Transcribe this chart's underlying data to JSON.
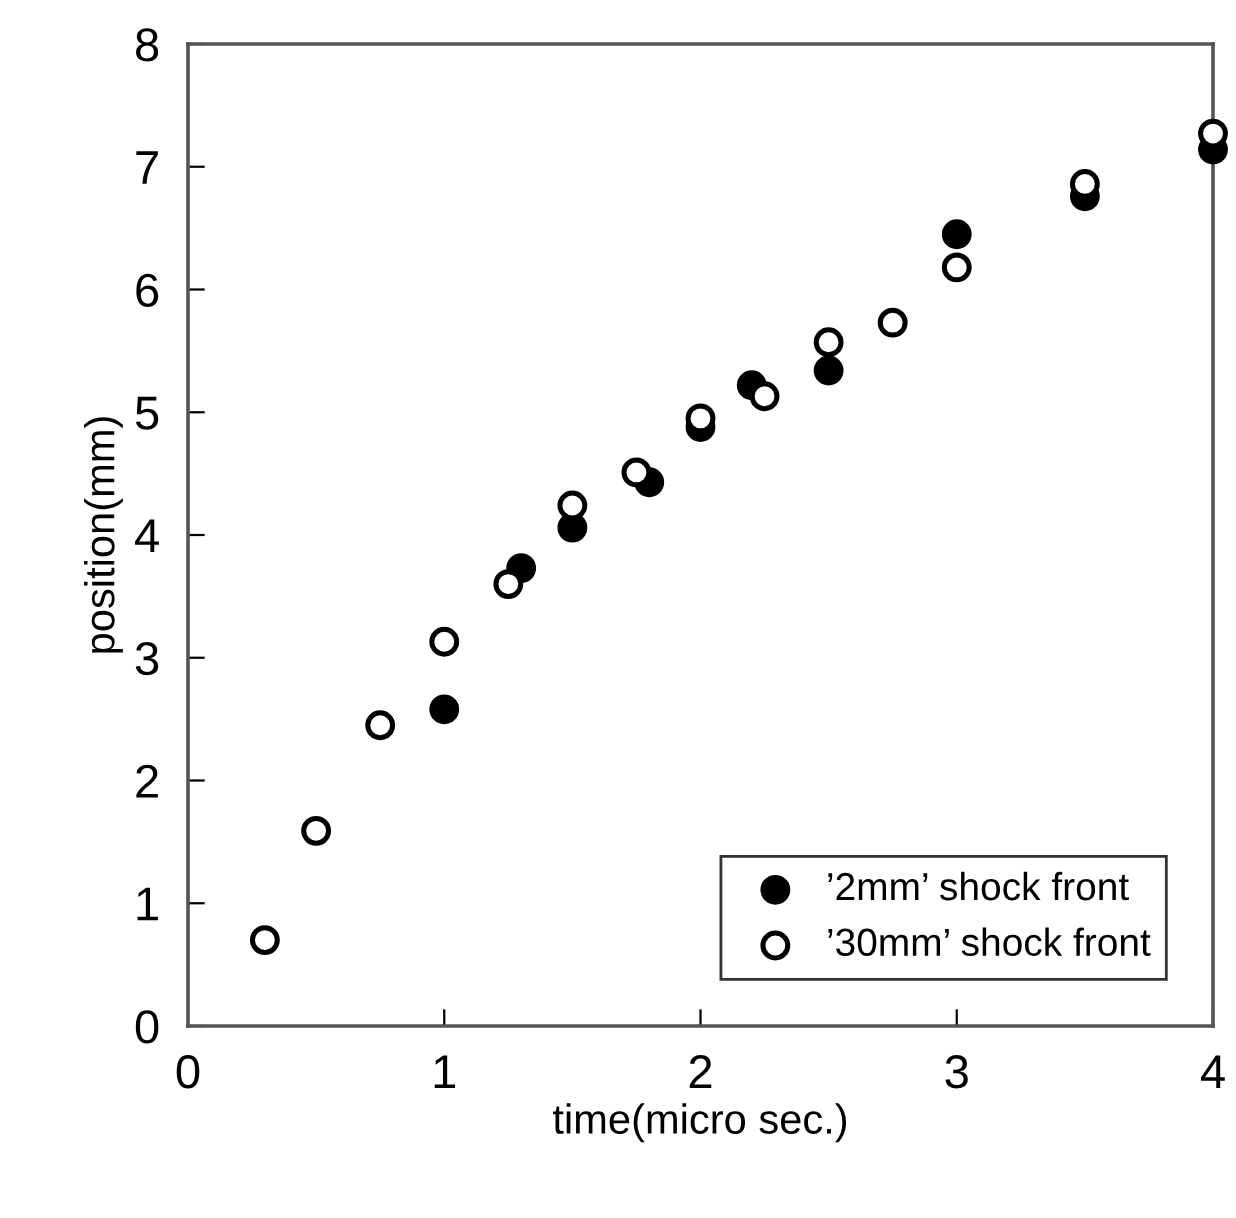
{
  "chart_data": {
    "type": "scatter",
    "xlabel": "time(micro sec.)",
    "ylabel": "position(mm)",
    "xlim": [
      0,
      4
    ],
    "ylim": [
      0,
      8
    ],
    "xticks": [
      0,
      1,
      2,
      3,
      4
    ],
    "yticks": [
      0,
      1,
      2,
      3,
      4,
      5,
      6,
      7,
      8
    ],
    "grid": false,
    "legend": "bottom right",
    "marker": "circle",
    "series": [
      {
        "name": "’2mm’ shock front",
        "color": "#000000",
        "x": [
          1,
          1.3,
          1.5,
          1.8,
          2,
          2.2,
          2.5,
          3,
          3.5,
          4
        ],
        "values": [
          2.58,
          3.73,
          4.06,
          4.43,
          4.88,
          5.22,
          5.34,
          6.45,
          6.76,
          7.14
        ]
      },
      {
        "name": "’30mm’ shock front",
        "color": "#ffffff",
        "x": [
          0.3,
          0.5,
          0.75,
          1,
          1.25,
          1.5,
          1.75,
          2,
          2.25,
          2.5,
          2.75,
          3,
          3.5,
          4
        ],
        "values": [
          0.7,
          1.59,
          2.45,
          3.13,
          3.6,
          4.24,
          4.51,
          4.95,
          5.13,
          5.57,
          5.73,
          6.18,
          6.86,
          7.27
        ]
      }
    ]
  }
}
